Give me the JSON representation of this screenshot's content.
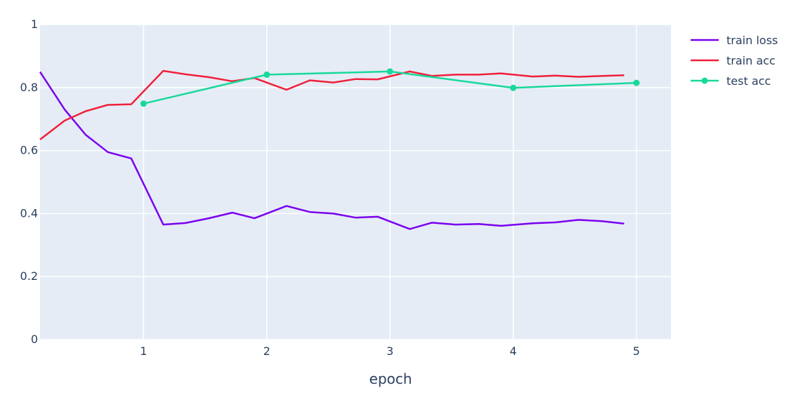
{
  "chart_data": {
    "type": "line",
    "xlabel": "epoch",
    "ylabel": "",
    "xlim": [
      0.16,
      5.28
    ],
    "ylim": [
      0,
      1
    ],
    "x_ticks": [
      1,
      2,
      3,
      4,
      5
    ],
    "y_ticks": [
      0,
      0.2,
      0.4,
      0.6,
      0.8,
      1
    ],
    "x_tick_labels": [
      "1",
      "2",
      "3",
      "4",
      "5"
    ],
    "y_tick_labels": [
      "0",
      "0.2",
      "0.4",
      "0.6",
      "0.8",
      "1"
    ],
    "grid": true,
    "legend_position": "top-right",
    "plot_background": "#e5ecf6",
    "series": [
      {
        "name": "train loss",
        "color": "#7a00f0",
        "markers": false,
        "x": [
          0.16,
          0.36,
          0.53,
          0.71,
          0.9,
          1.16,
          1.34,
          1.53,
          1.72,
          1.9,
          2.16,
          2.35,
          2.54,
          2.72,
          2.9,
          3.16,
          3.34,
          3.53,
          3.72,
          3.9,
          4.16,
          4.34,
          4.53,
          4.72,
          4.9
        ],
        "y": [
          0.85,
          0.73,
          0.65,
          0.595,
          0.575,
          0.365,
          0.37,
          0.385,
          0.403,
          0.385,
          0.424,
          0.405,
          0.4,
          0.387,
          0.39,
          0.351,
          0.371,
          0.365,
          0.367,
          0.361,
          0.369,
          0.372,
          0.38,
          0.376,
          0.368
        ]
      },
      {
        "name": "train acc",
        "color": "#f0203a",
        "markers": false,
        "x": [
          0.16,
          0.36,
          0.53,
          0.71,
          0.9,
          1.16,
          1.34,
          1.53,
          1.72,
          1.9,
          2.16,
          2.35,
          2.54,
          2.72,
          2.9,
          3.16,
          3.34,
          3.53,
          3.72,
          3.9,
          4.16,
          4.34,
          4.53,
          4.72,
          4.9
        ],
        "y": [
          0.635,
          0.695,
          0.725,
          0.745,
          0.747,
          0.853,
          0.842,
          0.833,
          0.82,
          0.83,
          0.793,
          0.823,
          0.816,
          0.827,
          0.826,
          0.851,
          0.837,
          0.841,
          0.841,
          0.845,
          0.835,
          0.838,
          0.834,
          0.837,
          0.839
        ]
      },
      {
        "name": "test acc",
        "color": "#17d99a",
        "markers": true,
        "x": [
          1,
          2,
          3,
          4,
          5
        ],
        "y": [
          0.749,
          0.841,
          0.851,
          0.799,
          0.815
        ]
      }
    ]
  }
}
